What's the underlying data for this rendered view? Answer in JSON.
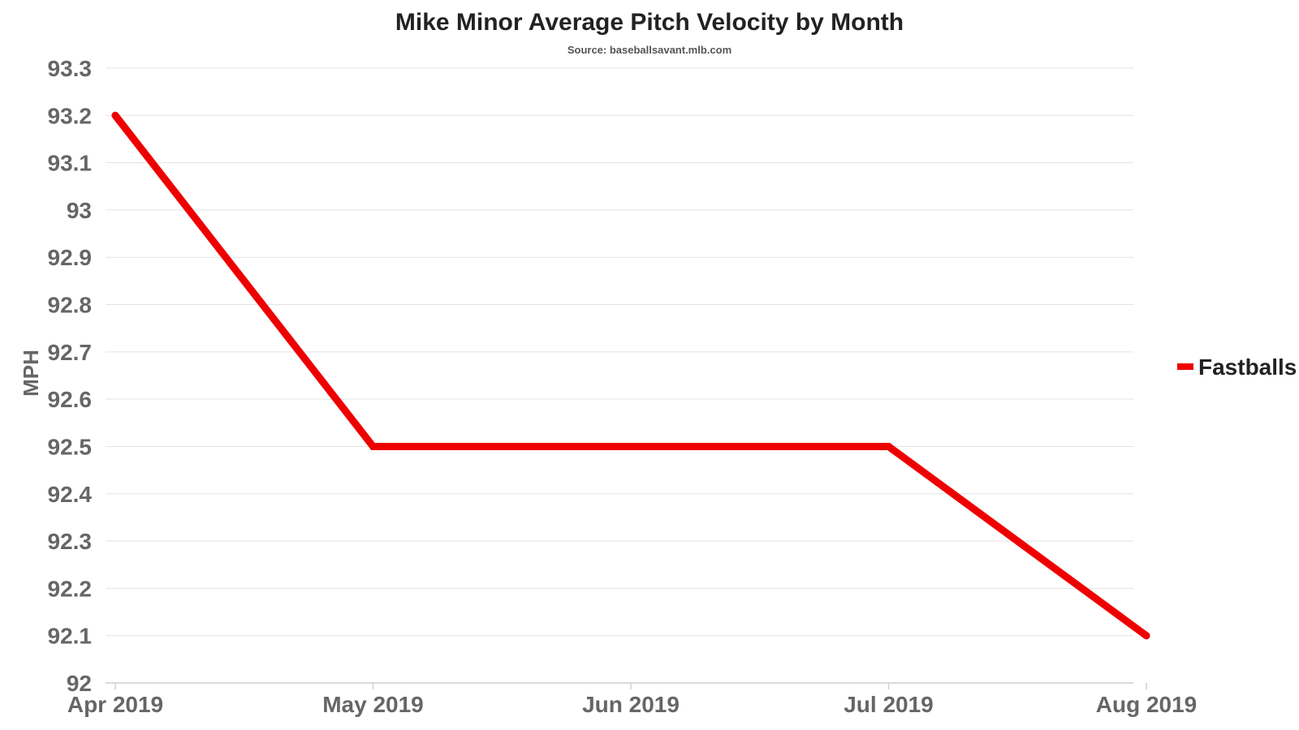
{
  "chart_data": {
    "type": "line",
    "title": "Mike Minor Average Pitch Velocity by Month",
    "subtitle": "Source: baseballsavant.mlb.com",
    "xlabel": "",
    "ylabel": "MPH",
    "categories": [
      "Apr 2019",
      "May 2019",
      "Jun 2019",
      "Jul 2019",
      "Aug 2019"
    ],
    "series": [
      {
        "name": "Fastballs",
        "color": "#ee0000",
        "values": [
          93.2,
          92.5,
          92.5,
          92.5,
          92.1
        ]
      }
    ],
    "ylim": [
      92,
      93.3
    ],
    "yticks": [
      "92",
      "92.1",
      "92.2",
      "92.3",
      "92.4",
      "92.5",
      "92.6",
      "92.7",
      "92.8",
      "92.9",
      "93",
      "93.1",
      "93.2",
      "93.3"
    ],
    "grid": true,
    "legend_position": "right"
  }
}
